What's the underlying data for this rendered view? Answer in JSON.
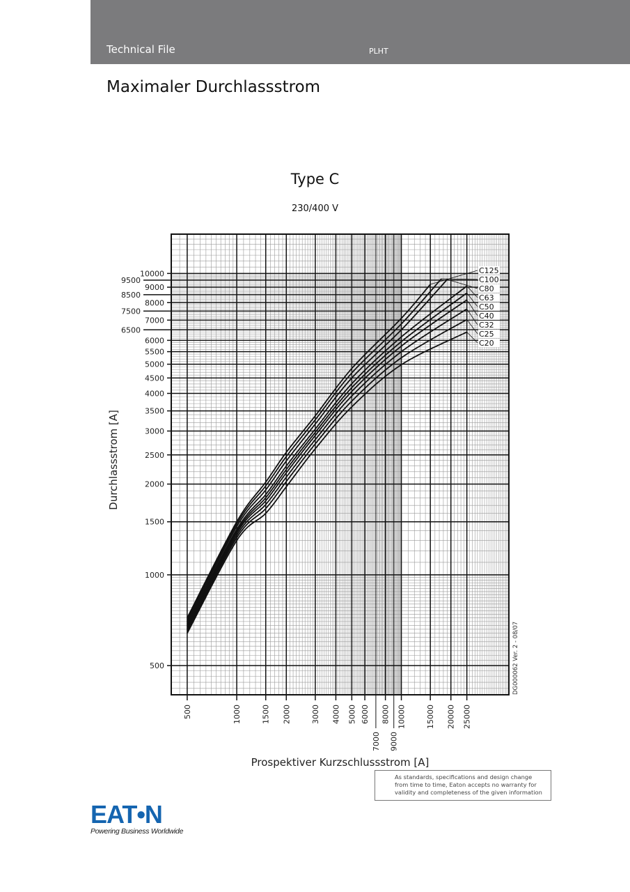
{
  "header": {
    "left": "Technical File",
    "center": "PLHT",
    "bg_color": "#7b7b7d"
  },
  "page_title": "Maximaler Durchlassstrom",
  "chart_data": {
    "type": "line",
    "title": "Type C",
    "subtitle": "230/400 V",
    "xlabel": "Prospektiver Kurzschlussstrom [A]",
    "ylabel": "Durchlassstrom  [A]",
    "xscale": "log",
    "yscale": "log",
    "xlim": [
      400,
      45000
    ],
    "ylim": [
      400,
      13500
    ],
    "grid": true,
    "xticks": [
      500,
      1000,
      1500,
      2000,
      3000,
      4000,
      5000,
      6000,
      7000,
      8000,
      9000,
      10000,
      15000,
      20000,
      25000
    ],
    "yticks": [
      500,
      1000,
      1500,
      2000,
      2500,
      3000,
      3500,
      4000,
      4500,
      5000,
      5500,
      6000,
      6500,
      7000,
      7500,
      8000,
      8500,
      9000,
      9500,
      10000
    ],
    "annotation": "DG000062  Ver. 2 - 08/07",
    "series": [
      {
        "name": "C125",
        "x": [
          500,
          1000,
          1500,
          2000,
          3000,
          5000,
          10000,
          15000
        ],
        "y": [
          720,
          1500,
          2030,
          2550,
          3370,
          4840,
          7100,
          9200
        ]
      },
      {
        "name": "C100",
        "x": [
          500,
          1000,
          1500,
          2000,
          3000,
          5000,
          10000,
          17500
        ],
        "y": [
          710,
          1475,
          1973,
          2470,
          3270,
          4675,
          6800,
          9600
        ]
      },
      {
        "name": "C80",
        "x": [
          500,
          1000,
          1500,
          2000,
          3000,
          5000,
          10000,
          19000
        ],
        "y": [
          699,
          1447,
          1912,
          2387,
          3165,
          4500,
          6500,
          9550
        ]
      },
      {
        "name": "C63",
        "x": [
          500,
          1000,
          1500,
          2000,
          3000,
          5000,
          10000,
          25000
        ],
        "y": [
          687,
          1416,
          1846,
          2296,
          3046,
          4306,
          6160,
          9080
        ]
      },
      {
        "name": "C50",
        "x": [
          500,
          1000,
          1500,
          2000,
          3000,
          5000,
          10000,
          25000
        ],
        "y": [
          679,
          1396,
          1802,
          2236,
          2970,
          4180,
          5940,
          8610
        ]
      },
      {
        "name": "C40",
        "x": [
          500,
          1000,
          1500,
          2000,
          3000,
          5000,
          10000,
          25000
        ],
        "y": [
          670,
          1377,
          1760,
          2180,
          2900,
          4060,
          5740,
          8170
        ]
      },
      {
        "name": "C32",
        "x": [
          500,
          1000,
          1500,
          2000,
          3000,
          5000,
          10000,
          25000
        ],
        "y": [
          661,
          1353,
          1711,
          2110,
          2810,
          3920,
          5500,
          7620
        ]
      },
      {
        "name": "C25",
        "x": [
          500,
          1000,
          1500,
          2000,
          3000,
          5000,
          10000,
          25000
        ],
        "y": [
          651,
          1328,
          1659,
          2040,
          2720,
          3770,
          5250,
          7030
        ]
      },
      {
        "name": "C20",
        "x": [
          500,
          1000,
          1500,
          2000,
          3000,
          5000,
          10000,
          25000
        ],
        "y": [
          640,
          1300,
          1600,
          1960,
          2620,
          3610,
          4980,
          6390
        ]
      }
    ]
  },
  "disclaimer": [
    "As standards, specifications and design change",
    "from time to time, Eaton accepts no warranty for",
    "validity and completeness of the given information"
  ],
  "logo": {
    "word": "EAT•N",
    "tagline": "Powering Business Worldwide",
    "color": "#1565b0"
  }
}
